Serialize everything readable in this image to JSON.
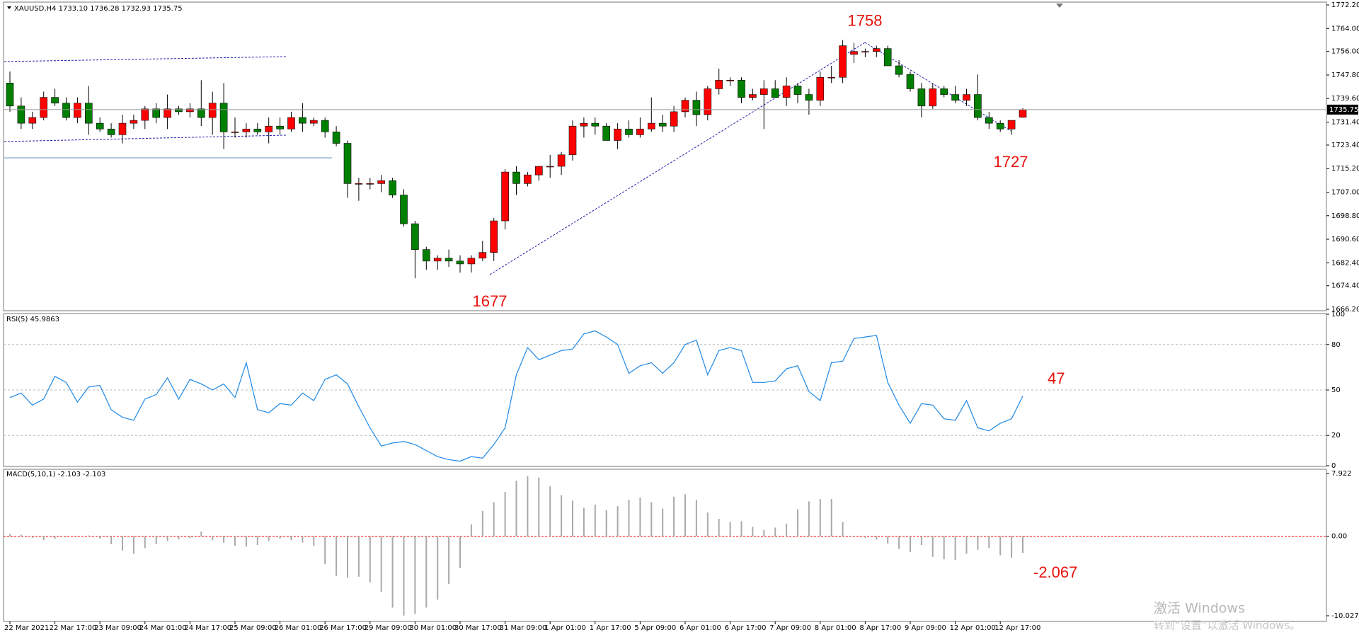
{
  "chart_data": [
    {
      "type": "candlestick",
      "title": "XAUUSD,H4  1733.10 1736.28 1732.93 1735.75",
      "up_color": "#ff0000",
      "down_color": "#008000",
      "categories": [
        "22 Mar 2021",
        null,
        null,
        null,
        "22 Mar 17:00",
        null,
        null,
        null,
        "23 Mar 09:00",
        null,
        null,
        null,
        "24 Mar 01:00",
        null,
        null,
        null,
        "24 Mar 17:00",
        null,
        null,
        null,
        "25 Mar 09:00",
        null,
        null,
        null,
        "26 Mar 01:00",
        null,
        null,
        null,
        "26 Mar 17:00",
        null,
        null,
        null,
        "29 Mar 09:00",
        null,
        null,
        null,
        "30 Mar 01:00",
        null,
        null,
        null,
        "30 Mar 17:00",
        null,
        null,
        null,
        "31 Mar 09:00",
        null,
        null,
        null,
        "1 Apr 01:00",
        null,
        null,
        null,
        "1 Apr 17:00",
        null,
        null,
        null,
        "5 Apr 09:00",
        null,
        null,
        null,
        "6 Apr 01:00",
        null,
        null,
        null,
        "6 Apr 17:00",
        null,
        null,
        null,
        "7 Apr 09:00",
        null,
        null,
        null,
        "8 Apr 01:00",
        null,
        null,
        null,
        "8 Apr 17:00",
        null,
        null,
        null,
        "9 Apr 09:00",
        null,
        null,
        null,
        "12 Apr 01:00",
        null,
        null,
        null,
        "12 Apr 17:00",
        null,
        null
      ],
      "open": [
        1745,
        1737,
        1731,
        1733,
        1740,
        1738,
        1733,
        1738,
        1731,
        1729,
        1727,
        1731,
        1732,
        1736,
        1733,
        1736,
        1735,
        1736,
        1733,
        1738,
        1728,
        1728,
        1729,
        1728,
        1730,
        1729,
        1733,
        1731,
        1732,
        1728,
        1724,
        1710,
        1710,
        1710,
        1711,
        1706,
        1696,
        1687,
        1683,
        1684,
        1683,
        1682,
        1684,
        1686,
        1697,
        1714,
        1710,
        1713,
        1716,
        1716,
        1720,
        1730,
        1731,
        1730,
        1725,
        1729,
        1727,
        1729,
        1731,
        1730,
        1735,
        1739,
        1734,
        1743,
        1746,
        1746,
        1740,
        1741,
        1743,
        1740,
        1744,
        1741,
        1739,
        1747,
        1747,
        1755,
        1756,
        1756,
        1757,
        1751,
        1748,
        1743,
        1737,
        1743,
        1741,
        1739,
        1741,
        1733,
        1731,
        1729,
        1733.1
      ],
      "high": [
        1749,
        1740,
        1735,
        1742,
        1743,
        1740,
        1740,
        1744,
        1733,
        1731,
        1734,
        1734,
        1737,
        1738,
        1741,
        1737,
        1738,
        1746,
        1742,
        1745,
        1733,
        1731,
        1731,
        1733,
        1733,
        1735,
        1738,
        1733,
        1733,
        1730,
        1725,
        1712,
        1712,
        1713,
        1712,
        1708,
        1697,
        1688,
        1685,
        1687,
        1685,
        1685,
        1690,
        1698,
        1715,
        1716,
        1714,
        1716,
        1720,
        1721,
        1732,
        1733,
        1733,
        1731,
        1731,
        1732,
        1733,
        1740,
        1734,
        1737,
        1740,
        1742,
        1744,
        1750,
        1747,
        1747,
        1743,
        1746,
        1746,
        1747,
        1745,
        1743,
        1749,
        1751,
        1760,
        1759,
        1757,
        1758,
        1758,
        1753,
        1749,
        1745,
        1745,
        1744,
        1744,
        1743,
        1748,
        1735,
        1732,
        1732,
        1736.28
      ],
      "low": [
        1735,
        1729,
        1729,
        1732,
        1737,
        1732,
        1731,
        1727,
        1728,
        1726,
        1724,
        1729,
        1729,
        1731,
        1729,
        1734,
        1733,
        1730,
        1727,
        1722,
        1726,
        1726,
        1727,
        1724,
        1727,
        1728,
        1728,
        1730,
        1726,
        1723,
        1705,
        1704,
        1708,
        1707,
        1705,
        1695,
        1677,
        1680,
        1680,
        1681,
        1679,
        1679,
        1683,
        1683,
        1694,
        1706,
        1709,
        1711,
        1712,
        1713,
        1718,
        1726,
        1727,
        1725,
        1722,
        1726,
        1726,
        1728,
        1728,
        1728,
        1733,
        1730,
        1732,
        1741,
        1744,
        1738,
        1739,
        1729,
        1740,
        1737,
        1738,
        1734,
        1737,
        1745,
        1745,
        1752,
        1754,
        1754,
        1751,
        1747,
        1742,
        1733,
        1736,
        1740,
        1738,
        1737,
        1732,
        1729,
        1728,
        1727,
        1732.93
      ],
      "close": [
        1737,
        1731,
        1733,
        1740,
        1738,
        1733,
        1738,
        1731,
        1729,
        1727,
        1731,
        1732,
        1736,
        1733,
        1736,
        1735,
        1736,
        1733,
        1738,
        1728,
        1728,
        1729,
        1728,
        1730,
        1729,
        1733,
        1731,
        1732,
        1728,
        1724,
        1710,
        1710,
        1710,
        1711,
        1706,
        1696,
        1687,
        1683,
        1684,
        1683,
        1682,
        1684,
        1686,
        1697,
        1714,
        1710,
        1713,
        1716,
        1716,
        1720,
        1730,
        1731,
        1730,
        1725,
        1729,
        1727,
        1729,
        1731,
        1730,
        1735,
        1739,
        1734,
        1743,
        1746,
        1746,
        1740,
        1741,
        1743,
        1740,
        1744,
        1741,
        1739,
        1747,
        1747,
        1758,
        1756,
        1756,
        1757,
        1751,
        1748,
        1743,
        1737,
        1743,
        1741,
        1739,
        1741,
        1733,
        1731,
        1729,
        1732,
        1735.75
      ],
      "ylim": [
        1666.2,
        1772.2
      ],
      "yticks": [
        {
          "value": 1666.2,
          "label": "1666.20"
        },
        {
          "value": 1674.4,
          "label": "1674.40"
        },
        {
          "value": 1682.4,
          "label": "1682.40"
        },
        {
          "value": 1690.6,
          "label": "1690.60"
        },
        {
          "value": 1698.8,
          "label": "1698.80"
        },
        {
          "value": 1707,
          "label": "1707.00"
        },
        {
          "value": 1715.2,
          "label": "1715.20"
        },
        {
          "value": 1723.4,
          "label": "1723.40"
        },
        {
          "value": 1731.4,
          "label": "1731.40"
        },
        {
          "value": 1739.6,
          "label": "1739.60"
        },
        {
          "value": 1747.8,
          "label": "1747.80"
        },
        {
          "value": 1756,
          "label": "1756.00"
        },
        {
          "value": 1764,
          "label": "1764.00"
        },
        {
          "value": 1772.2,
          "label": "1772.20"
        }
      ],
      "last_price": 1735.75,
      "annotations": [
        1758,
        1677,
        1727
      ]
    },
    {
      "type": "line",
      "title": "RSI(5) 45.9863",
      "color": "#1e88e5",
      "values": [
        45,
        48,
        40,
        44,
        59,
        55,
        42,
        52,
        53,
        37,
        32,
        30,
        44,
        47,
        58,
        44,
        57,
        54,
        50,
        54,
        45,
        68,
        37,
        35,
        41,
        40,
        48,
        43,
        57,
        60,
        54,
        39,
        25,
        13,
        15,
        16,
        14,
        10,
        6,
        4,
        3,
        6,
        5,
        14,
        25,
        60,
        78,
        70,
        73,
        76,
        77,
        87,
        89,
        85,
        80,
        61,
        66,
        68,
        61,
        68,
        80,
        83,
        60,
        76,
        78,
        76,
        55,
        55,
        56,
        64,
        66,
        49,
        43,
        68,
        69,
        84,
        85,
        86,
        55,
        40,
        28,
        41,
        40,
        31,
        30,
        43,
        25,
        23,
        28,
        31,
        45.9863
      ],
      "ylim": [
        0,
        100
      ],
      "yticks": [
        0,
        20,
        50,
        80,
        100
      ],
      "grid": true,
      "annotation": 47
    },
    {
      "type": "bar",
      "title": "MACD(5,10,1) -2.103 -2.103",
      "color": "#a9a9a9",
      "zero_line_color": "#ff0000",
      "values": [
        0.3,
        0.2,
        -0.2,
        -0.5,
        -0.3,
        -0.1,
        0,
        0.1,
        -0.3,
        -1.0,
        -1.8,
        -2.2,
        -1.5,
        -1.0,
        -0.6,
        -0.4,
        -0.2,
        0.6,
        -0.5,
        -0.8,
        -1.2,
        -1.3,
        -1.1,
        -0.6,
        -0.3,
        -0.5,
        -0.8,
        -1.2,
        -3.5,
        -5.0,
        -5.2,
        -5.1,
        -5.8,
        -7.0,
        -9.0,
        -10.0,
        -9.8,
        -9.0,
        -8.0,
        -6.0,
        -4.0,
        1.5,
        3.2,
        4.3,
        5.6,
        7.0,
        7.6,
        7.4,
        6.3,
        5.2,
        4.5,
        3.6,
        4.0,
        3.3,
        3.8,
        4.6,
        4.9,
        4.3,
        3.5,
        5.0,
        5.3,
        4.6,
        3.0,
        2.2,
        1.8,
        1.9,
        1.2,
        0.8,
        1.1,
        1.6,
        3.4,
        4.4,
        4.7,
        4.7,
        1.8,
        -0.1,
        -0.2,
        -0.4,
        -0.9,
        -1.6,
        -2.0,
        -1.1,
        -2.6,
        -2.9,
        -3.0,
        -2.2,
        -1.7,
        -1.5,
        -2.4,
        -2.7,
        -2.103
      ],
      "ylim": [
        -10.027,
        7.922
      ],
      "yticks": [
        -10.027,
        {
          "value": 0,
          "label": "0.00"
        },
        7.922
      ],
      "annotation": -2.067
    }
  ],
  "watermark": {
    "line1": "激活 Windows",
    "line2": "转到“设置”以激活 Windows。"
  }
}
